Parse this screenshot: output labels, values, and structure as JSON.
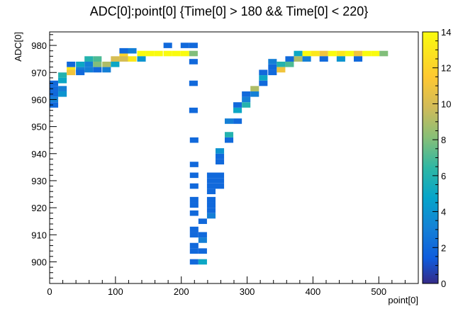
{
  "chart_data": {
    "type": "heatmap",
    "title": "ADC[0]:point[0] {Time[0] > 180 && Time[0] < 220}",
    "xlabel": "point[0]",
    "ylabel": "ADC[0]",
    "xlim": [
      0,
      560
    ],
    "ylim": [
      892,
      985
    ],
    "x_ticks": [
      0,
      100,
      200,
      300,
      400,
      500
    ],
    "y_ticks": [
      900,
      910,
      920,
      930,
      940,
      950,
      960,
      970,
      980
    ],
    "colorbar": {
      "range": [
        0,
        14
      ],
      "ticks": [
        0,
        2,
        4,
        6,
        8,
        10,
        12,
        14
      ],
      "palette": "kBird"
    },
    "grid": false,
    "cells": [
      [
        0,
        965,
        2
      ],
      [
        0,
        963,
        2
      ],
      [
        0,
        961,
        2
      ],
      [
        0,
        959,
        3
      ],
      [
        0,
        957,
        2
      ],
      [
        13,
        968,
        6
      ],
      [
        13,
        966,
        5
      ],
      [
        13,
        963,
        3
      ],
      [
        13,
        961,
        4
      ],
      [
        26,
        970,
        13
      ],
      [
        26,
        969,
        11
      ],
      [
        26,
        972,
        2
      ],
      [
        40,
        972,
        5
      ],
      [
        40,
        970,
        3
      ],
      [
        40,
        969,
        2
      ],
      [
        53,
        974,
        6
      ],
      [
        53,
        972,
        3
      ],
      [
        53,
        970,
        3
      ],
      [
        66,
        974,
        7
      ],
      [
        66,
        972,
        8
      ],
      [
        66,
        970,
        2
      ],
      [
        80,
        972,
        9
      ],
      [
        80,
        970,
        3
      ],
      [
        93,
        974,
        10
      ],
      [
        93,
        972,
        5
      ],
      [
        106,
        975,
        12
      ],
      [
        106,
        974,
        10
      ],
      [
        106,
        977,
        2
      ],
      [
        119,
        974,
        13
      ],
      [
        119,
        977,
        3
      ],
      [
        133,
        976,
        14
      ],
      [
        133,
        974,
        4
      ],
      [
        146,
        976,
        14
      ],
      [
        159,
        976,
        14
      ],
      [
        173,
        976,
        14
      ],
      [
        173,
        979,
        2
      ],
      [
        186,
        976,
        14
      ],
      [
        199,
        976,
        14
      ],
      [
        199,
        979,
        2
      ],
      [
        212,
        976,
        8
      ],
      [
        212,
        979,
        2
      ],
      [
        212,
        973,
        2
      ],
      [
        212,
        965,
        2
      ],
      [
        212,
        955,
        2
      ],
      [
        213,
        944,
        2
      ],
      [
        213,
        935,
        2
      ],
      [
        213,
        931,
        2
      ],
      [
        213,
        927,
        2
      ],
      [
        213,
        922,
        2
      ],
      [
        213,
        920,
        2
      ],
      [
        213,
        917,
        2
      ],
      [
        213,
        911,
        2
      ],
      [
        213,
        909,
        2
      ],
      [
        213,
        905,
        2
      ],
      [
        213,
        903,
        2
      ],
      [
        213,
        899,
        2
      ],
      [
        226,
        909,
        2
      ],
      [
        226,
        907,
        3
      ],
      [
        226,
        903,
        2
      ],
      [
        226,
        899,
        5
      ],
      [
        226,
        914,
        2
      ],
      [
        239,
        931,
        2
      ],
      [
        239,
        929,
        2
      ],
      [
        239,
        927,
        2
      ],
      [
        239,
        925,
        2
      ],
      [
        239,
        922,
        2
      ],
      [
        239,
        920,
        2
      ],
      [
        239,
        918,
        2
      ],
      [
        239,
        916,
        3
      ],
      [
        252,
        936,
        2
      ],
      [
        252,
        938,
        2
      ],
      [
        252,
        940,
        4
      ],
      [
        252,
        931,
        2
      ],
      [
        252,
        929,
        2
      ],
      [
        252,
        927,
        2
      ],
      [
        266,
        944,
        2
      ],
      [
        266,
        946,
        6
      ],
      [
        266,
        951,
        3
      ],
      [
        279,
        951,
        2
      ],
      [
        279,
        955,
        5
      ],
      [
        279,
        957,
        2
      ],
      [
        292,
        957,
        6
      ],
      [
        292,
        959,
        3
      ],
      [
        292,
        961,
        2
      ],
      [
        305,
        961,
        3
      ],
      [
        305,
        963,
        9
      ],
      [
        318,
        965,
        2
      ],
      [
        318,
        967,
        5
      ],
      [
        318,
        969,
        2
      ],
      [
        332,
        969,
        2
      ],
      [
        332,
        971,
        2
      ],
      [
        332,
        973,
        3
      ],
      [
        345,
        972,
        6
      ],
      [
        345,
        970,
        11
      ],
      [
        358,
        974,
        2
      ],
      [
        358,
        972,
        7
      ],
      [
        371,
        976,
        5
      ],
      [
        371,
        974,
        9
      ],
      [
        384,
        976,
        14
      ],
      [
        384,
        974,
        3
      ],
      [
        397,
        976,
        13
      ],
      [
        410,
        976,
        11
      ],
      [
        410,
        974,
        2
      ],
      [
        423,
        976,
        14
      ],
      [
        436,
        976,
        13
      ],
      [
        436,
        974,
        4
      ],
      [
        449,
        976,
        14
      ],
      [
        462,
        976,
        11
      ],
      [
        462,
        974,
        2
      ],
      [
        475,
        976,
        14
      ],
      [
        488,
        976,
        14
      ],
      [
        501,
        976,
        8
      ]
    ]
  }
}
